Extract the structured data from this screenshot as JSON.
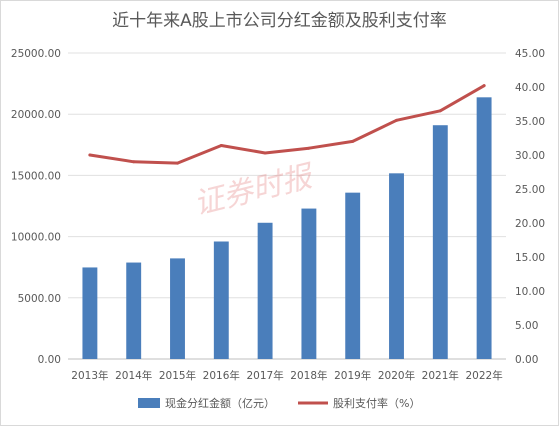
{
  "chart_data": {
    "type": "bar",
    "title": "近十年来A股上市公司分红金额及股利支付率",
    "categories": [
      "2013年",
      "2014年",
      "2015年",
      "2016年",
      "2017年",
      "2018年",
      "2019年",
      "2020年",
      "2021年",
      "2022年"
    ],
    "series": [
      {
        "name": "现金分红金额（亿元）",
        "type": "bar",
        "axis": "left",
        "color": "#4a7ebb",
        "values": [
          7480,
          7880,
          8220,
          9600,
          11130,
          12290,
          13590,
          15170,
          19100,
          21380
        ]
      },
      {
        "name": "股利支付率（%）",
        "type": "line",
        "axis": "right",
        "color": "#c0504d",
        "values": [
          30.0,
          29.0,
          28.8,
          31.4,
          30.3,
          31.0,
          32.0,
          35.1,
          36.5,
          40.2
        ]
      }
    ],
    "y_left": {
      "ylim": [
        0,
        25000
      ],
      "ticks": [
        "0.00",
        "5000.00",
        "10000.00",
        "15000.00",
        "20000.00",
        "25000.00"
      ]
    },
    "y_right": {
      "ylim": [
        0,
        45
      ],
      "ticks": [
        "0.00",
        "5.00",
        "10.00",
        "15.00",
        "20.00",
        "25.00",
        "30.00",
        "35.00",
        "40.00",
        "45.00"
      ]
    },
    "grid": true,
    "legend_position": "bottom-center"
  },
  "watermark": "证券时报"
}
